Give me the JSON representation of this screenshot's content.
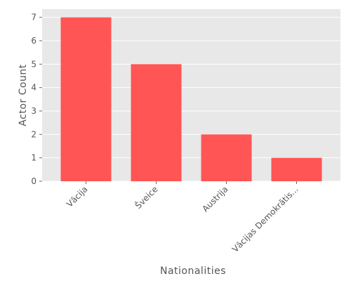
{
  "chart_data": {
    "type": "bar",
    "categories": [
      "Vācija",
      "Šveice",
      "Austrija",
      "Vācijas Demokrātis..."
    ],
    "values": [
      7,
      5,
      2,
      1
    ],
    "title": "",
    "xlabel": "Nationalities",
    "ylabel": "Actor Count",
    "ylim": [
      0,
      7.35
    ],
    "yticks": [
      0,
      1,
      2,
      3,
      4,
      5,
      6,
      7
    ],
    "grid": true,
    "legend": "none",
    "colors": {
      "bar": "#ff5555",
      "plot_background": "#e8e8e8",
      "grid": "#ffffff",
      "text": "#555555"
    }
  }
}
